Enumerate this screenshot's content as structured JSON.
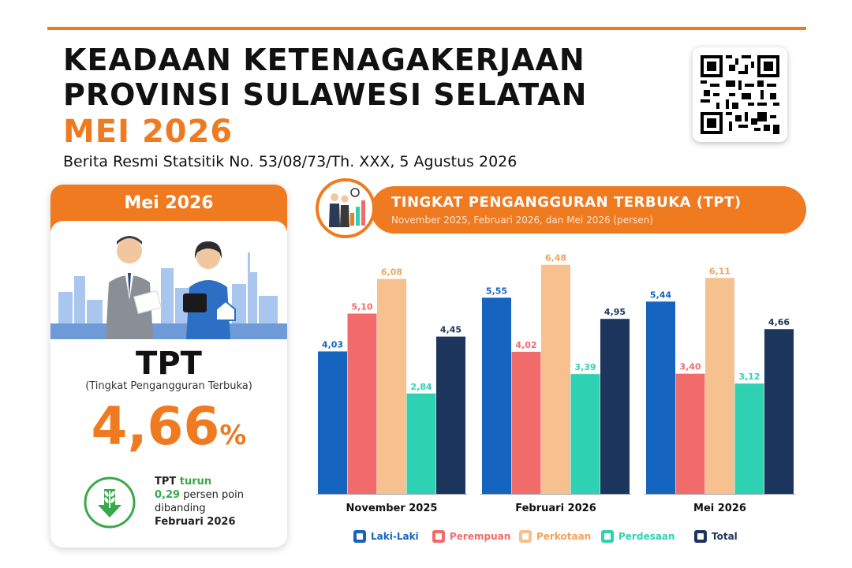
{
  "header": {
    "line1": "KEADAAN KETENAGAKERJAAN",
    "line2": "PROVINSI SULAWESI SELATAN",
    "line3": "MEI 2026",
    "subtitle": "Berita Resmi Statsitik No. 53/08/73/Th. XXX, 5 Agustus 2026"
  },
  "card": {
    "period": "Mei 2026",
    "abbr": "TPT",
    "full_name": "(Tingkat Pengangguran Terbuka)",
    "value": "4,66",
    "unit": "%",
    "change_line1_a": "TPT ",
    "change_line1_b": "turun",
    "change_value": "0,29",
    "change_unit": " persen poin",
    "change_line3": "dibanding",
    "change_line4": "Februari 2026"
  },
  "icons": {
    "qr": "qr-code-icon",
    "down": "down-arrow-wheat-icon",
    "people": "business-people-chart-icon"
  },
  "colors": {
    "accent": "#f07a20",
    "laki_laki": "#1565c0",
    "perempuan": "#f26b6b",
    "perkotaan": "#f7c08f",
    "perdesaan": "#2fd1b3",
    "total": "#1b355c",
    "down_green": "#3aa84a"
  },
  "chart_data": {
    "type": "bar",
    "title": "TINGKAT PENGANGGURAN TERBUKA (TPT)",
    "subtitle": "November 2025, Februari 2026, dan Mei 2026 (persen)",
    "categories": [
      "November 2025",
      "Februari 2026",
      "Mei 2026"
    ],
    "series": [
      {
        "name": "Laki-Laki",
        "values": [
          4.03,
          5.55,
          5.44
        ],
        "labels": [
          "4,03",
          "5,55",
          "5,44"
        ],
        "color": "#1565c0"
      },
      {
        "name": "Perempuan",
        "values": [
          5.1,
          4.02,
          3.4
        ],
        "labels": [
          "5,10",
          "4,02",
          "3,40"
        ],
        "color": "#f26b6b"
      },
      {
        "name": "Perkotaan",
        "values": [
          6.08,
          6.48,
          6.11
        ],
        "labels": [
          "6,08",
          "6,48",
          "6,11"
        ],
        "color": "#f7c08f"
      },
      {
        "name": "Perdesaan",
        "values": [
          2.84,
          3.39,
          3.12
        ],
        "labels": [
          "2,84",
          "3,39",
          "3,12"
        ],
        "color": "#2fd1b3"
      },
      {
        "name": "Total",
        "values": [
          4.45,
          4.95,
          4.66
        ],
        "labels": [
          "4,45",
          "4,95",
          "4,66"
        ],
        "color": "#1b355c"
      }
    ],
    "ylim": [
      0,
      7
    ],
    "grid": false,
    "legend": "bottom"
  }
}
